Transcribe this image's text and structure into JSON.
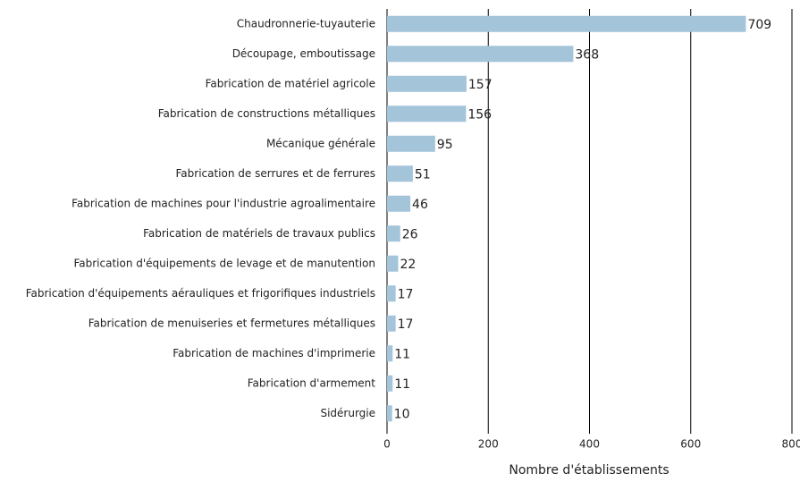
{
  "chart_data": {
    "type": "bar",
    "orientation": "horizontal",
    "x_label": "Nombre d'établissements",
    "categories": [
      "Chaudronnerie-tuyauterie",
      "Découpage, emboutissage",
      "Fabrication de matériel agricole",
      "Fabrication de constructions métalliques",
      "Mécanique générale",
      "Fabrication de serrures et de ferrures",
      "Fabrication de machines pour l'industrie agroalimentaire",
      "Fabrication de matériels de travaux publics",
      "Fabrication d'équipements de levage et de manutention",
      "Fabrication d'équipements aérauliques et frigorifiques industriels",
      "Fabrication de menuiseries et fermetures métalliques",
      "Fabrication de machines d'imprimerie",
      "Fabrication d'armement",
      "Sidérurgie"
    ],
    "values": [
      709,
      368,
      157,
      156,
      95,
      51,
      46,
      26,
      22,
      17,
      17,
      11,
      11,
      10
    ],
    "color": "#a3c4d9",
    "xlim": [
      0,
      800
    ],
    "xticks": [
      0,
      200,
      400,
      600,
      800
    ],
    "grid": true
  }
}
